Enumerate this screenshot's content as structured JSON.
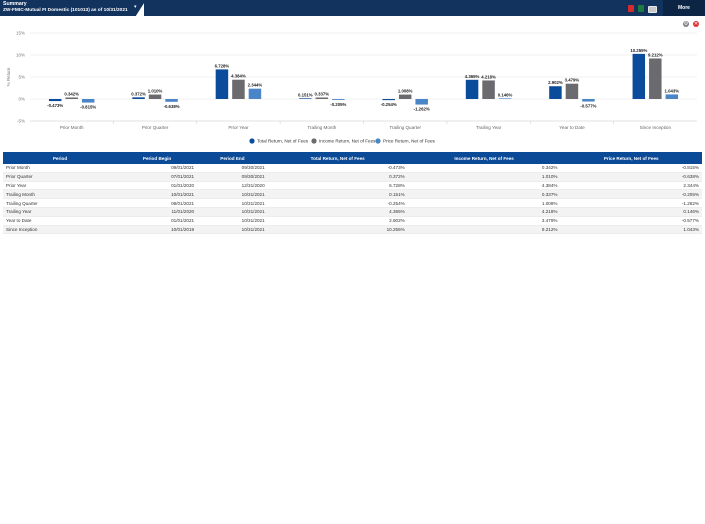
{
  "header": {
    "summary_label": "Summary",
    "account_title": "ZW-FMIC-Mutual FI Domestic (101013) as of 10/31/2021",
    "more_label": "More",
    "icons": [
      "pdf-icon",
      "excel-icon",
      "print-icon",
      "chevron-down-icon"
    ]
  },
  "page_icons": {
    "gear": "⚙",
    "close": "✕"
  },
  "chart_data": {
    "type": "bar",
    "ylabel": "% Return",
    "ylim": [
      -5,
      15
    ],
    "yticks": [
      -5,
      0,
      5,
      10,
      15
    ],
    "ytick_labels": [
      "-5%",
      "0%",
      "5%",
      "10%",
      "15%"
    ],
    "categories": [
      "Prior Month",
      "Prior Quarter",
      "Prior Year",
      "Trailing Month",
      "Trailing Quarter",
      "Trailing Year",
      "Year to Date",
      "Since Inception"
    ],
    "series": [
      {
        "name": "Total Return, Net of Fees",
        "color": "#0a4b9c",
        "values": [
          -0.473,
          0.372,
          6.728,
          0.151,
          -0.254,
          4.365,
          2.902,
          10.255
        ]
      },
      {
        "name": "Income Return, Net of Fees",
        "color": "#6b6b6f",
        "values": [
          0.342,
          1.01,
          4.384,
          0.337,
          1.008,
          4.218,
          3.479,
          9.212
        ]
      },
      {
        "name": "Price Return, Net of Fees",
        "color": "#4a86c7",
        "values": [
          -0.815,
          -0.638,
          2.344,
          -0.205,
          -1.262,
          0.146,
          -0.577,
          1.043
        ]
      }
    ],
    "legend_position": "bottom"
  },
  "table": {
    "columns": [
      "Period",
      "Period Begin",
      "Period End",
      "Total Return, Net of Fees",
      "Income Return, Net of Fees",
      "Price Return, Net of Fees"
    ],
    "rows": [
      [
        "Prior Month",
        "09/01/2021",
        "09/30/2021",
        "-0.473%",
        "0.342%",
        "-0.815%"
      ],
      [
        "Prior Quarter",
        "07/01/2021",
        "09/30/2021",
        "0.372%",
        "1.010%",
        "-0.638%"
      ],
      [
        "Prior Year",
        "01/01/2020",
        "12/31/2020",
        "6.728%",
        "4.384%",
        "2.344%"
      ],
      [
        "Trailing Month",
        "10/01/2021",
        "10/31/2021",
        "0.151%",
        "0.337%",
        "-0.205%"
      ],
      [
        "Trailing Quarter",
        "08/01/2021",
        "10/31/2021",
        "-0.254%",
        "1.008%",
        "-1.262%"
      ],
      [
        "Trailing Year",
        "11/01/2020",
        "10/31/2021",
        "4.365%",
        "4.218%",
        "0.146%"
      ],
      [
        "Year to Date",
        "01/01/2021",
        "10/31/2021",
        "2.902%",
        "3.479%",
        "-0.577%"
      ],
      [
        "Since Inception",
        "10/01/2019",
        "10/31/2021",
        "10.255%",
        "9.212%",
        "1.043%"
      ]
    ]
  }
}
